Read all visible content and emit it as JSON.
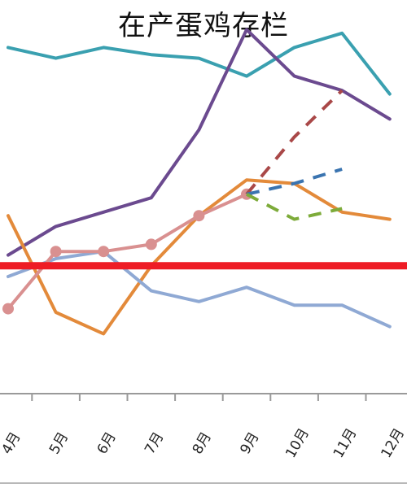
{
  "chart_data": {
    "type": "line",
    "title": "在产蛋鸡存栏",
    "categories": [
      "4月",
      "5月",
      "6月",
      "7月",
      "8月",
      "9月",
      "10月",
      "11月",
      "12月"
    ],
    "series": [
      {
        "color": "#3aa0b0",
        "style": "solid",
        "values": [
          94,
          91,
          94,
          92,
          91,
          86,
          94,
          98,
          81
        ]
      },
      {
        "color": "#6b4a8f",
        "style": "solid",
        "values": [
          36,
          44,
          48,
          52,
          71,
          99,
          86,
          82,
          74
        ]
      },
      {
        "color": "#e38a3a",
        "style": "solid",
        "values": [
          47,
          20,
          14,
          33,
          47,
          57,
          56,
          48,
          46
        ]
      },
      {
        "color": "#8fa9d4",
        "style": "solid",
        "values": [
          30,
          35,
          37,
          26,
          23,
          27,
          22,
          22,
          16
        ]
      },
      {
        "color": "#d99090",
        "style": "solid",
        "markers": true,
        "values": [
          21,
          37,
          37,
          39,
          47,
          53,
          null,
          null,
          null
        ]
      },
      {
        "color": "#a94848",
        "style": "dashed",
        "values": [
          null,
          null,
          null,
          null,
          null,
          53,
          69,
          82,
          null
        ]
      },
      {
        "color": "#3a74b0",
        "style": "dashed",
        "values": [
          null,
          null,
          null,
          null,
          null,
          53,
          56,
          60,
          null
        ]
      },
      {
        "color": "#7dab3a",
        "style": "dashed",
        "values": [
          null,
          null,
          null,
          null,
          null,
          53,
          46,
          49,
          null
        ]
      }
    ],
    "reference_line": {
      "value": 33,
      "color": "#ee1c25"
    },
    "ylim": [
      0,
      100
    ],
    "grid": false,
    "legend": "none"
  }
}
